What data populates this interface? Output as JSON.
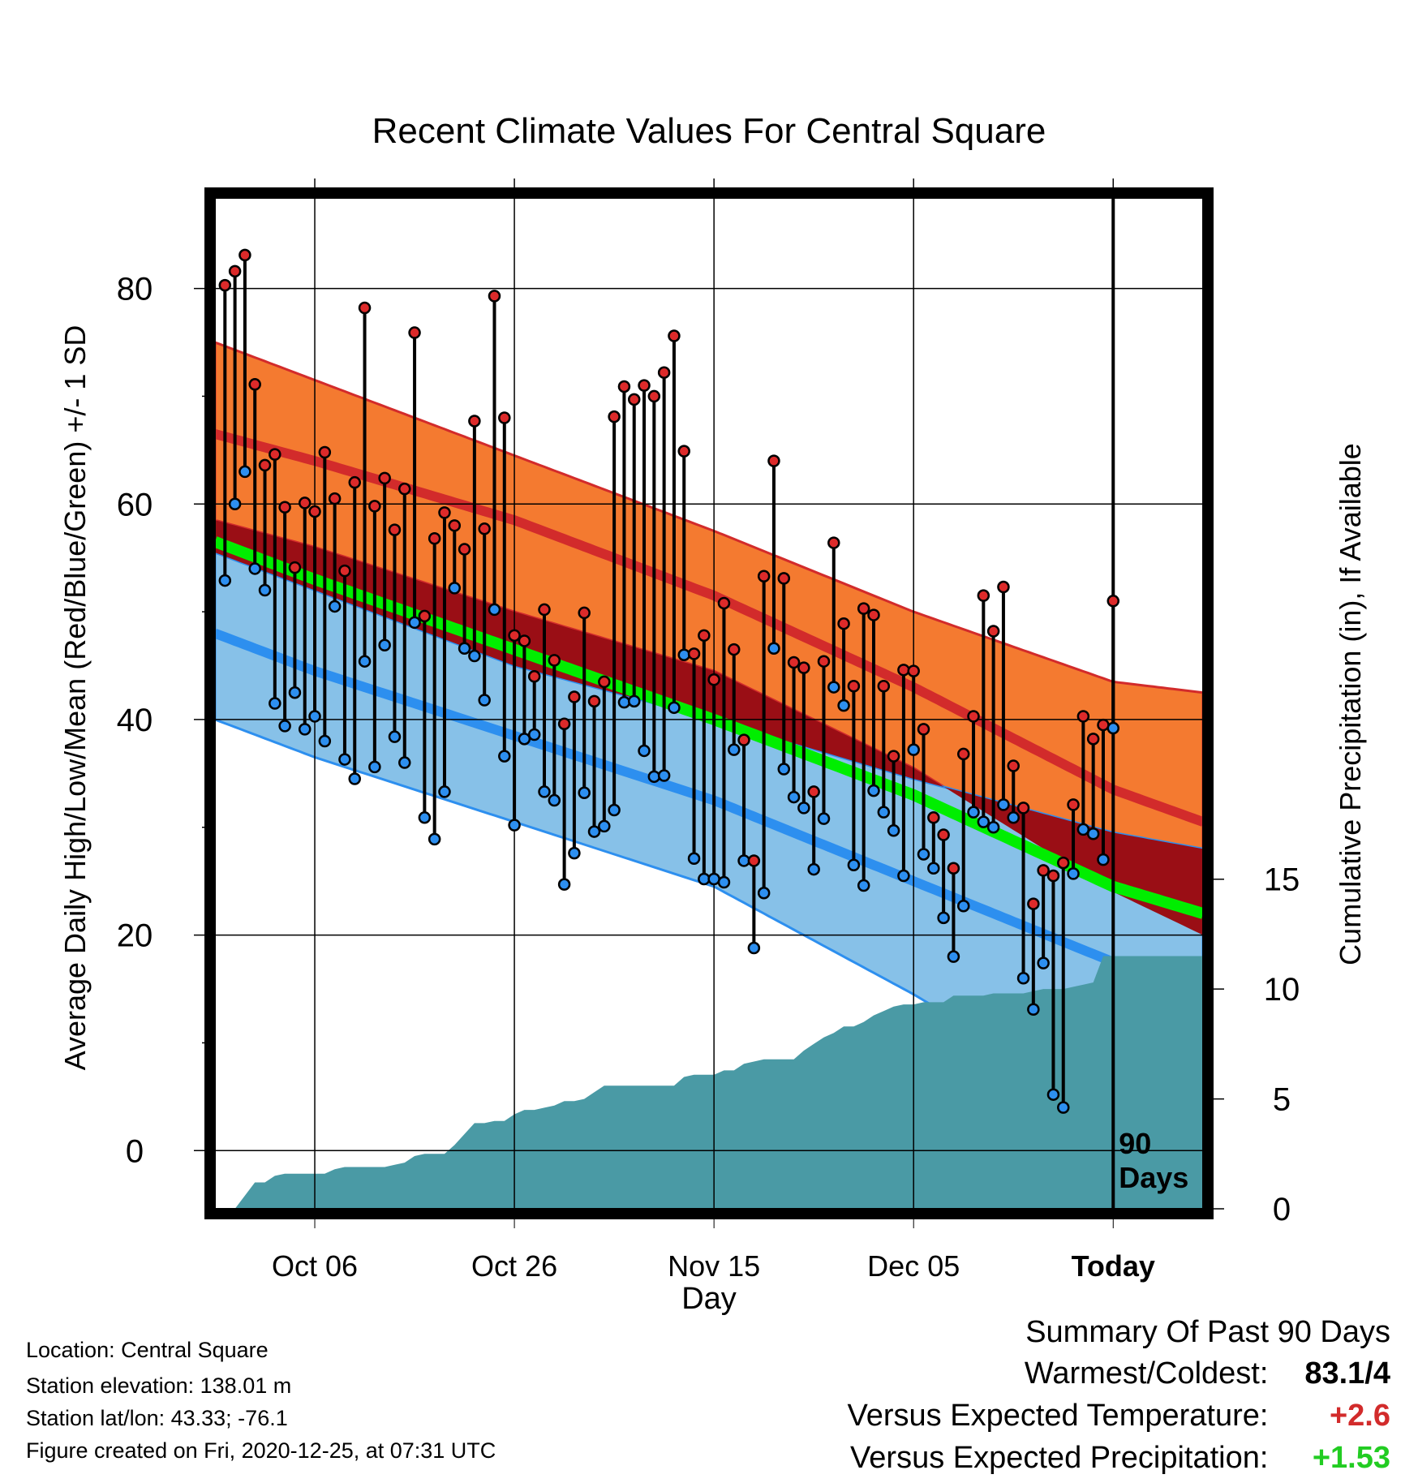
{
  "chart_data": {
    "type": "line",
    "title": "Recent Climate Values For Central Square",
    "xlabel": "Day",
    "ylabel": "Average Daily High/Low/Mean (Red/Blue/Green) +/- 1 SD",
    "y2label": "Cumulative Precipitation (in), If Available",
    "x_ticks": [
      "Oct 06",
      "Oct 26",
      "Nov 15",
      "Dec 05",
      "Today"
    ],
    "y_ticks": [
      "0",
      "20",
      "40",
      "60",
      "80"
    ],
    "y2_ticks": [
      "0",
      "5",
      "10",
      "15"
    ],
    "ylim": [
      -5.4,
      88.4
    ],
    "y2lim": [
      0,
      46
    ],
    "x_days": {
      "first": -90,
      "last": 9,
      "tick_days": [
        -80,
        -60,
        -40,
        -20,
        0
      ]
    },
    "today_marker_label": [
      "90",
      "Days"
    ],
    "grid": true,
    "colors": {
      "high_band": "#f47a30",
      "high_line": "#d22b2b",
      "mean_band": "#9a0e15",
      "mean_line": "#00ee00",
      "low_band": "#87c1e8",
      "low_line": "#2d8fef",
      "precip": "#4a9aa5",
      "obs_high_dot": "#dd2a2a",
      "obs_low_dot": "#2d8ff0"
    },
    "normals": {
      "day": [
        -90,
        -80,
        -60,
        -40,
        -20,
        0,
        9
      ],
      "high_mean": [
        66.5,
        64.0,
        58.5,
        51.5,
        43.0,
        33.5,
        30.5
      ],
      "high_upper": [
        75.0,
        71.5,
        64.5,
        57.5,
        50.0,
        43.5,
        42.5
      ],
      "high_lower": [
        58.5,
        56.0,
        50.0,
        44.5,
        35.5,
        24.0,
        20.0
      ],
      "low_mean": [
        48.0,
        44.5,
        38.5,
        32.5,
        25.0,
        17.5,
        15.5
      ],
      "low_upper": [
        55.5,
        52.0,
        45.0,
        40.0,
        34.5,
        29.5,
        28.0
      ],
      "low_lower": [
        40.0,
        36.5,
        30.5,
        24.5,
        14.5,
        3.5,
        3.0
      ],
      "mean": [
        56.5,
        53.0,
        46.5,
        40.0,
        33.0,
        24.5,
        22.0
      ]
    },
    "observed": {
      "high": [
        80.3,
        81.6,
        83.1,
        71.1,
        63.6,
        64.6,
        59.7,
        54.1,
        60.1,
        59.3,
        64.8,
        60.5,
        53.8,
        62.0,
        78.2,
        59.8,
        62.4,
        57.6,
        61.4,
        75.9,
        49.6,
        56.8,
        59.2,
        58.0,
        55.8,
        67.7,
        57.7,
        79.3,
        68.0,
        47.8,
        47.3,
        44.0,
        50.2,
        45.5,
        39.6,
        42.1,
        49.9,
        41.7,
        43.5,
        68.1,
        70.9,
        69.7,
        71.0,
        70.0,
        72.2,
        75.6,
        64.9,
        46.1,
        47.8,
        43.7,
        50.8,
        46.5,
        38.1,
        26.9,
        53.3,
        64.0,
        53.1,
        45.3,
        44.8,
        33.3,
        45.4,
        56.4,
        48.9,
        43.1,
        50.3,
        49.7,
        43.1,
        36.6,
        44.6,
        44.5,
        39.1,
        30.9,
        29.3,
        26.2,
        36.8,
        40.3,
        51.5,
        48.2,
        52.3,
        35.7,
        31.8,
        22.9,
        26.0,
        25.5,
        26.7,
        32.1,
        40.3,
        38.2,
        39.5,
        51.0
      ],
      "low": [
        52.9,
        60.0,
        63.0,
        54.0,
        52.0,
        41.5,
        39.4,
        42.5,
        39.1,
        40.3,
        38.0,
        50.5,
        36.3,
        34.5,
        45.4,
        35.6,
        46.9,
        38.4,
        36.0,
        49.0,
        30.9,
        28.9,
        33.3,
        52.2,
        46.6,
        45.9,
        41.8,
        50.2,
        36.6,
        30.2,
        38.2,
        38.6,
        33.3,
        32.5,
        24.7,
        27.6,
        33.2,
        29.6,
        30.1,
        31.6,
        41.6,
        41.7,
        37.1,
        34.7,
        34.8,
        41.1,
        46.0,
        27.1,
        25.2,
        25.2,
        24.9,
        37.2,
        26.9,
        18.8,
        23.9,
        46.6,
        35.4,
        32.8,
        31.8,
        26.1,
        30.8,
        43.0,
        41.3,
        26.5,
        24.6,
        33.4,
        31.4,
        29.7,
        25.5,
        37.2,
        27.5,
        26.2,
        21.6,
        18.0,
        22.7,
        31.4,
        30.5,
        30.0,
        32.1,
        30.9,
        16.0,
        13.1,
        17.4,
        5.2,
        4.0,
        25.7,
        29.8,
        29.4,
        27.0,
        39.2
      ]
    },
    "precip_cumulative_in": [
      0,
      0,
      0,
      0.6,
      1.2,
      1.2,
      1.5,
      1.6,
      1.6,
      1.6,
      1.6,
      1.6,
      1.8,
      1.9,
      1.9,
      1.9,
      1.9,
      1.9,
      2.0,
      2.1,
      2.4,
      2.5,
      2.5,
      2.5,
      2.9,
      3.4,
      3.9,
      3.9,
      4.0,
      4.0,
      4.3,
      4.5,
      4.5,
      4.6,
      4.7,
      4.9,
      4.9,
      5.0,
      5.3,
      5.6,
      5.6,
      5.6,
      5.6,
      5.6,
      5.6,
      5.6,
      5.6,
      6.0,
      6.1,
      6.1,
      6.1,
      6.3,
      6.3,
      6.6,
      6.7,
      6.8,
      6.8,
      6.8,
      6.8,
      7.2,
      7.5,
      7.8,
      8.0,
      8.3,
      8.3,
      8.5,
      8.8,
      9.0,
      9.2,
      9.3,
      9.3,
      9.4,
      9.4,
      9.4,
      9.7,
      9.7,
      9.7,
      9.7,
      9.8,
      9.8,
      9.8,
      9.8,
      9.9,
      10.0,
      10.0,
      10.0,
      10.1,
      10.2,
      10.3,
      11.5,
      11.5,
      11.5,
      11.5,
      11.5,
      11.5,
      11.5,
      11.5,
      11.5,
      11.5,
      11.5
    ]
  },
  "footer": {
    "location": "Location: Central Square",
    "elevation": "Station elevation: 138.01 m",
    "latlon": "Station lat/lon: 43.33; -76.1",
    "created": "Figure created on Fri, 2020-12-25, at 07:31 UTC"
  },
  "summary": {
    "heading": "Summary Of Past 90 Days",
    "warmest_label": "Warmest/Coldest:",
    "warmest_value": "83.1/4",
    "temp_label": "Versus Expected Temperature:",
    "temp_value": "+2.6",
    "temp_color": "#d22b2b",
    "precip_label": "Versus Expected Precipitation:",
    "precip_value": "+1.53",
    "precip_color": "#22cc22"
  }
}
